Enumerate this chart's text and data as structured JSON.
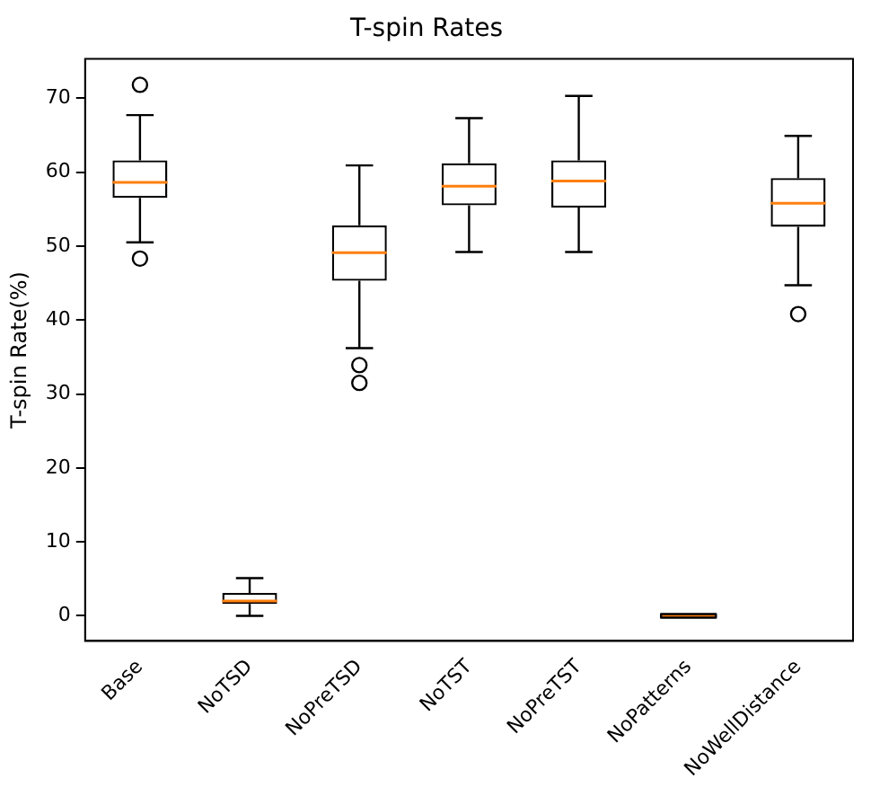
{
  "chart_data": {
    "type": "box",
    "title": "T-spin Rates",
    "ylabel": "T-spin Rate(%)",
    "categories": [
      "Base",
      "NoTSD",
      "NoPreTSD",
      "NoTST",
      "NoPreTST",
      "NoPatterns",
      "NoWellDistance"
    ],
    "boxes": [
      {
        "low": 50.5,
        "q1": 56.5,
        "median": 58.6,
        "q3": 61.6,
        "high": 67.7,
        "outliers": [
          71.8,
          48.3
        ]
      },
      {
        "low": 0,
        "q1": 1.6,
        "median": 2.0,
        "q3": 3.1,
        "high": 5.1
      },
      {
        "low": 36.2,
        "q1": 45.3,
        "median": 49.1,
        "q3": 52.8,
        "high": 60.9,
        "outliers": [
          33.9,
          31.5
        ]
      },
      {
        "low": 49.2,
        "q1": 55.5,
        "median": 58.1,
        "q3": 61.2,
        "high": 67.3
      },
      {
        "low": 49.2,
        "q1": 55.2,
        "median": 58.8,
        "q3": 61.6,
        "high": 70.3
      },
      {
        "low": 0,
        "q1": 0,
        "median": 0,
        "q3": 0,
        "high": 0
      },
      {
        "low": 44.7,
        "q1": 52.6,
        "median": 55.8,
        "q3": 59.2,
        "high": 64.9,
        "outliers": [
          40.8
        ]
      }
    ],
    "ylim": [
      -3.4,
      75.3
    ],
    "yticks": [
      0,
      10,
      20,
      30,
      40,
      50,
      60,
      70
    ],
    "grid": false,
    "legend": false
  }
}
